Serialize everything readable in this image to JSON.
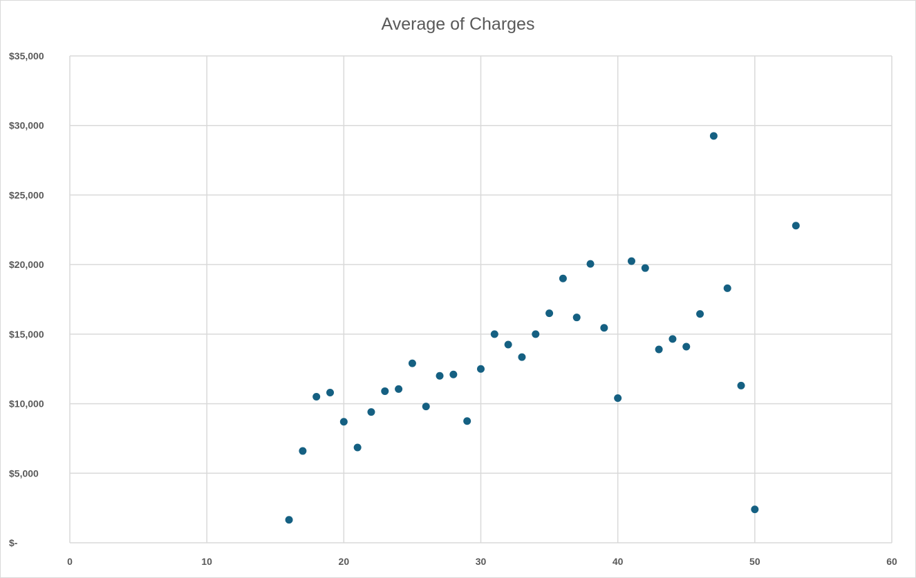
{
  "chart_data": {
    "type": "scatter",
    "title": "Average of Charges",
    "xlabel": "",
    "ylabel": "",
    "xlim": [
      0,
      60
    ],
    "ylim": [
      0,
      35000
    ],
    "x_ticks": [
      {
        "value": 0,
        "label": "0"
      },
      {
        "value": 10,
        "label": "10"
      },
      {
        "value": 20,
        "label": "20"
      },
      {
        "value": 30,
        "label": "30"
      },
      {
        "value": 40,
        "label": "40"
      },
      {
        "value": 50,
        "label": "50"
      },
      {
        "value": 60,
        "label": "60"
      }
    ],
    "y_ticks": [
      {
        "value": 0,
        "label": "$-"
      },
      {
        "value": 5000,
        "label": "$5,000"
      },
      {
        "value": 10000,
        "label": "$10,000"
      },
      {
        "value": 15000,
        "label": "$15,000"
      },
      {
        "value": 20000,
        "label": "$20,000"
      },
      {
        "value": 25000,
        "label": "$25,000"
      },
      {
        "value": 30000,
        "label": "$30,000"
      },
      {
        "value": 35000,
        "label": "$35,000"
      }
    ],
    "grid": true,
    "legend": "none",
    "marker_color": "#156082",
    "series": [
      {
        "points": [
          {
            "x": 16,
            "y": 1650
          },
          {
            "x": 17,
            "y": 6600
          },
          {
            "x": 18,
            "y": 10500
          },
          {
            "x": 19,
            "y": 10800
          },
          {
            "x": 20,
            "y": 8700
          },
          {
            "x": 21,
            "y": 6850
          },
          {
            "x": 22,
            "y": 9400
          },
          {
            "x": 23,
            "y": 10900
          },
          {
            "x": 24,
            "y": 11050
          },
          {
            "x": 25,
            "y": 12900
          },
          {
            "x": 26,
            "y": 9800
          },
          {
            "x": 27,
            "y": 12000
          },
          {
            "x": 28,
            "y": 12100
          },
          {
            "x": 29,
            "y": 8750
          },
          {
            "x": 30,
            "y": 12500
          },
          {
            "x": 31,
            "y": 15000
          },
          {
            "x": 32,
            "y": 14250
          },
          {
            "x": 33,
            "y": 13350
          },
          {
            "x": 34,
            "y": 15000
          },
          {
            "x": 35,
            "y": 16500
          },
          {
            "x": 36,
            "y": 19000
          },
          {
            "x": 37,
            "y": 16200
          },
          {
            "x": 38,
            "y": 20050
          },
          {
            "x": 39,
            "y": 15450
          },
          {
            "x": 40,
            "y": 10400
          },
          {
            "x": 41,
            "y": 20250
          },
          {
            "x": 42,
            "y": 19750
          },
          {
            "x": 43,
            "y": 13900
          },
          {
            "x": 44,
            "y": 14650
          },
          {
            "x": 45,
            "y": 14100
          },
          {
            "x": 46,
            "y": 16450
          },
          {
            "x": 47,
            "y": 29250
          },
          {
            "x": 48,
            "y": 18300
          },
          {
            "x": 49,
            "y": 11300
          },
          {
            "x": 50,
            "y": 2400
          },
          {
            "x": 53,
            "y": 22800
          }
        ]
      }
    ]
  }
}
